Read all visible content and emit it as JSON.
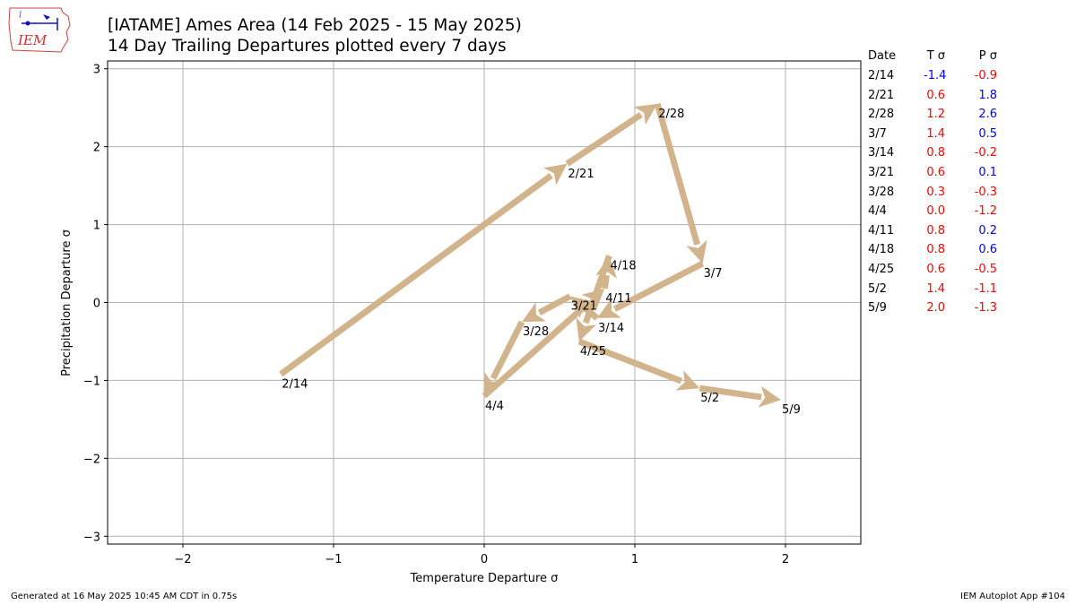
{
  "header": {
    "logo_text": "IEM",
    "title_line1": "[IATAME] Ames Area (14 Feb 2025 - 15 May 2025)",
    "title_line2": "14 Day Trailing Departures plotted every 7 days"
  },
  "chart_data": {
    "type": "line",
    "xlabel": "Temperature Departure σ",
    "ylabel": "Precipitation Departure σ",
    "xlim": [
      -2.5,
      2.5
    ],
    "ylim": [
      -3.1,
      3.1
    ],
    "xticks": [
      -2,
      -1,
      0,
      1,
      2
    ],
    "yticks": [
      -3,
      -2,
      -1,
      0,
      1,
      2,
      3
    ],
    "grid": true,
    "arrow_color": "#d2b48c",
    "points": [
      {
        "label": "2/14",
        "x": -1.35,
        "y": -0.92
      },
      {
        "label": "2/21",
        "x": 0.55,
        "y": 1.78
      },
      {
        "label": "2/28",
        "x": 1.15,
        "y": 2.55
      },
      {
        "label": "3/7",
        "x": 1.45,
        "y": 0.5
      },
      {
        "label": "3/14",
        "x": 0.75,
        "y": -0.2
      },
      {
        "label": "3/21",
        "x": 0.57,
        "y": 0.08
      },
      {
        "label": "3/28",
        "x": 0.25,
        "y": -0.25
      },
      {
        "label": "4/4",
        "x": 0.0,
        "y": -1.2
      },
      {
        "label": "4/11",
        "x": 0.8,
        "y": 0.18
      },
      {
        "label": "4/18",
        "x": 0.83,
        "y": 0.6
      },
      {
        "label": "4/25",
        "x": 0.63,
        "y": -0.5
      },
      {
        "label": "5/2",
        "x": 1.43,
        "y": -1.1
      },
      {
        "label": "5/9",
        "x": 1.97,
        "y": -1.25
      }
    ]
  },
  "table": {
    "headers": {
      "date": "Date",
      "t": "T σ",
      "p": "P σ"
    },
    "positive_color": "#ff0000",
    "negative_color": "#0000ff",
    "rows": [
      {
        "date": "2/14",
        "t": "-1.4",
        "p": "-0.9",
        "t_color": "#0000ff",
        "p_color": "#ff0000"
      },
      {
        "date": "2/21",
        "t": "0.6",
        "p": "1.8",
        "t_color": "#ff0000",
        "p_color": "#0000ff"
      },
      {
        "date": "2/28",
        "t": "1.2",
        "p": "2.6",
        "t_color": "#ff0000",
        "p_color": "#0000ff"
      },
      {
        "date": "3/7",
        "t": "1.4",
        "p": "0.5",
        "t_color": "#ff0000",
        "p_color": "#0000ff"
      },
      {
        "date": "3/14",
        "t": "0.8",
        "p": "-0.2",
        "t_color": "#ff0000",
        "p_color": "#ff0000"
      },
      {
        "date": "3/21",
        "t": "0.6",
        "p": "0.1",
        "t_color": "#ff0000",
        "p_color": "#0000ff"
      },
      {
        "date": "3/28",
        "t": "0.3",
        "p": "-0.3",
        "t_color": "#ff0000",
        "p_color": "#ff0000"
      },
      {
        "date": "4/4",
        "t": "0.0",
        "p": "-1.2",
        "t_color": "#ff0000",
        "p_color": "#ff0000"
      },
      {
        "date": "4/11",
        "t": "0.8",
        "p": "0.2",
        "t_color": "#ff0000",
        "p_color": "#0000ff"
      },
      {
        "date": "4/18",
        "t": "0.8",
        "p": "0.6",
        "t_color": "#ff0000",
        "p_color": "#0000ff"
      },
      {
        "date": "4/25",
        "t": "0.6",
        "p": "-0.5",
        "t_color": "#ff0000",
        "p_color": "#ff0000"
      },
      {
        "date": "5/2",
        "t": "1.4",
        "p": "-1.1",
        "t_color": "#ff0000",
        "p_color": "#ff0000"
      },
      {
        "date": "5/9",
        "t": "2.0",
        "p": "-1.3",
        "t_color": "#ff0000",
        "p_color": "#ff0000"
      }
    ]
  },
  "footer": {
    "left": "Generated at 16 May 2025 10:45 AM CDT in 0.75s",
    "right": "IEM Autoplot App #104"
  }
}
